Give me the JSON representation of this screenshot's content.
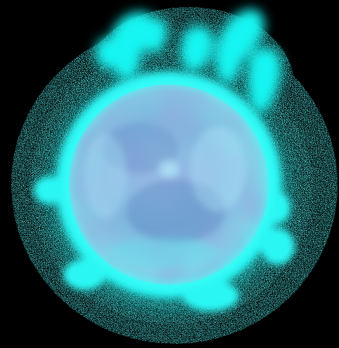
{
  "scene": {
    "subject": "glowing-energy-orb",
    "colors": {
      "background": "#000000",
      "glow": "#19F5F2",
      "glow_bright": "#4CFFF9",
      "orb_core": "#7FB6DE",
      "orb_shadow": "#4F78B8",
      "orb_highlight": "#B9F2FF"
    }
  }
}
